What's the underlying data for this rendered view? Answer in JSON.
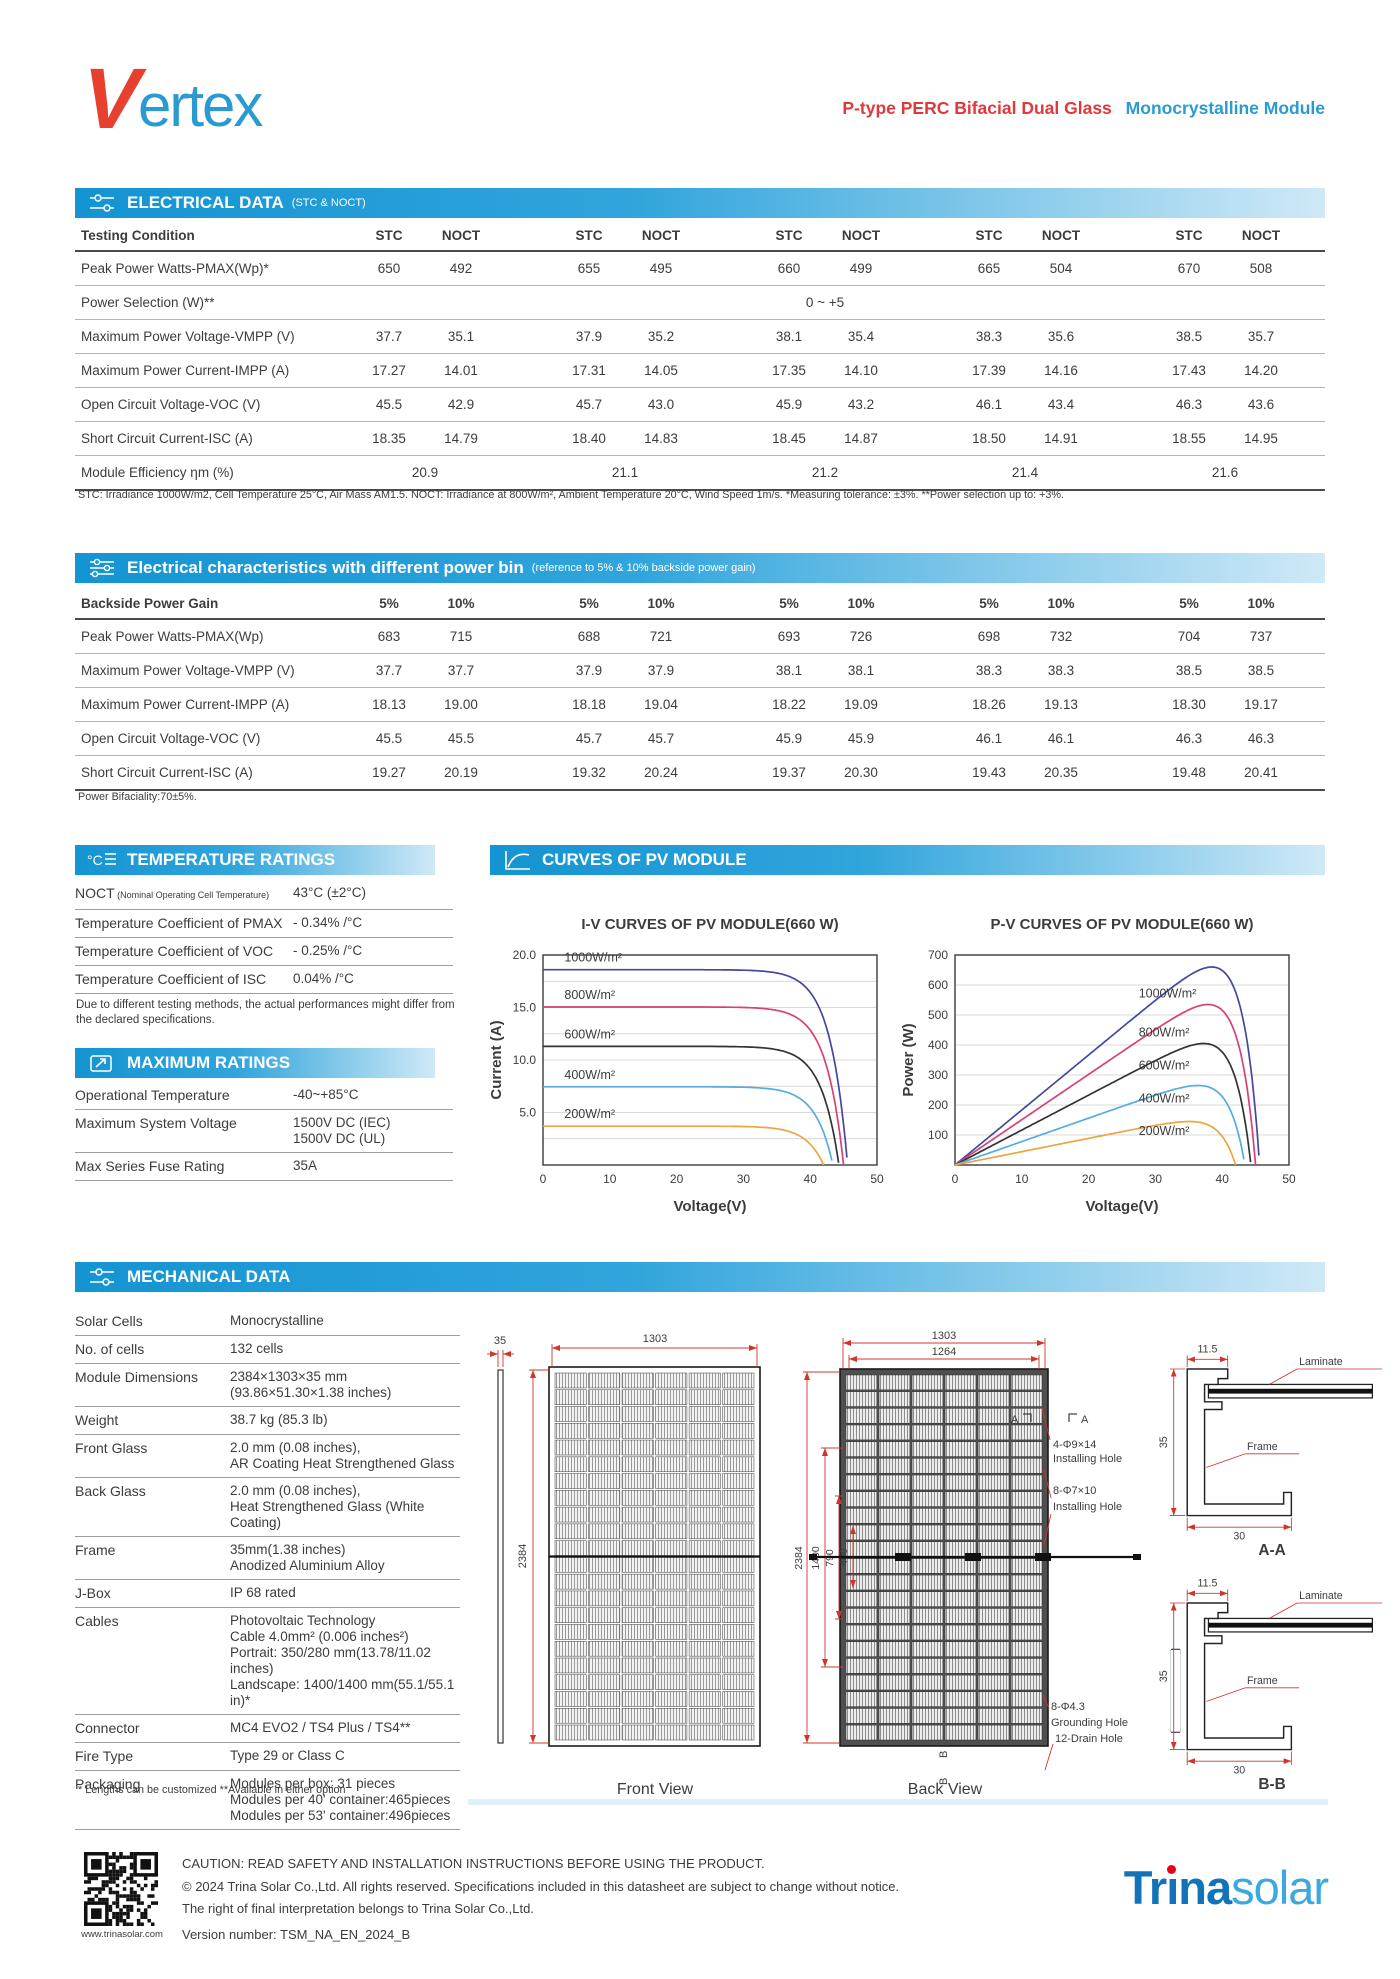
{
  "colors": {
    "accent_blue": "#1b9dd9",
    "brand_red": "#e8402f",
    "header_gradient_start": "#1494d2",
    "header_gradient_end": "#cfe9f7",
    "dimension_red": "#d0342c"
  },
  "header": {
    "logo_v": "V",
    "logo_rest": "ertex",
    "subtitle_red": "P-type PERC Bifacial Dual Glass",
    "subtitle_blue": "Monocrystalline Module"
  },
  "electrical": {
    "title": "ELECTRICAL DATA",
    "title_note": "(STC & NOCT)",
    "header_label": "Testing Condition",
    "pair_labels": [
      "STC",
      "NOCT"
    ],
    "rows": [
      {
        "label": "Peak Power Watts-PMAX(Wp)*",
        "pairs": [
          [
            "650",
            "492"
          ],
          [
            "655",
            "495"
          ],
          [
            "660",
            "499"
          ],
          [
            "665",
            "504"
          ],
          [
            "670",
            "508"
          ]
        ]
      },
      {
        "label": "Power Selection (W)**",
        "span": "0 ~ +5"
      },
      {
        "label": "Maximum Power Voltage-VMPP (V)",
        "pairs": [
          [
            "37.7",
            "35.1"
          ],
          [
            "37.9",
            "35.2"
          ],
          [
            "38.1",
            "35.4"
          ],
          [
            "38.3",
            "35.6"
          ],
          [
            "38.5",
            "35.7"
          ]
        ]
      },
      {
        "label": "Maximum Power Current-IMPP (A)",
        "pairs": [
          [
            "17.27",
            "14.01"
          ],
          [
            "17.31",
            "14.05"
          ],
          [
            "17.35",
            "14.10"
          ],
          [
            "17.39",
            "14.16"
          ],
          [
            "17.43",
            "14.20"
          ]
        ]
      },
      {
        "label": "Open Circuit Voltage-VOC (V)",
        "pairs": [
          [
            "45.5",
            "42.9"
          ],
          [
            "45.7",
            "43.0"
          ],
          [
            "45.9",
            "43.2"
          ],
          [
            "46.1",
            "43.4"
          ],
          [
            "46.3",
            "43.6"
          ]
        ]
      },
      {
        "label": "Short Circuit Current-ISC (A)",
        "pairs": [
          [
            "18.35",
            "14.79"
          ],
          [
            "18.40",
            "14.83"
          ],
          [
            "18.45",
            "14.87"
          ],
          [
            "18.50",
            "14.91"
          ],
          [
            "18.55",
            "14.95"
          ]
        ]
      },
      {
        "label": "Module Efficiency ηm (%)",
        "centers": [
          "20.9",
          "21.1",
          "21.2",
          "21.4",
          "21.6"
        ]
      }
    ],
    "footnote": "STC: Irradiance 1000W/m2, Cell Temperature 25°C, Air Mass AM1.5.    NOCT: Irradiance at 800W/m², Ambient Temperature 20°C, Wind Speed 1m/s.    *Measuring tolerance: ±3%.    **Power selection up to: +3%."
  },
  "power_bin": {
    "title": "Electrical characteristics with different power bin",
    "title_note": "(reference to 5% & 10%  backside power gain)",
    "header_label": "Backside Power Gain",
    "pair_labels": [
      "5%",
      "10%"
    ],
    "rows": [
      {
        "label": "Peak Power Watts-PMAX(Wp)",
        "pairs": [
          [
            "683",
            "715"
          ],
          [
            "688",
            "721"
          ],
          [
            "693",
            "726"
          ],
          [
            "698",
            "732"
          ],
          [
            "704",
            "737"
          ]
        ]
      },
      {
        "label": "Maximum Power Voltage-VMPP (V)",
        "pairs": [
          [
            "37.7",
            "37.7"
          ],
          [
            "37.9",
            "37.9"
          ],
          [
            "38.1",
            "38.1"
          ],
          [
            "38.3",
            "38.3"
          ],
          [
            "38.5",
            "38.5"
          ]
        ]
      },
      {
        "label": "Maximum Power Current-IMPP (A)",
        "pairs": [
          [
            "18.13",
            "19.00"
          ],
          [
            "18.18",
            "19.04"
          ],
          [
            "18.22",
            "19.09"
          ],
          [
            "18.26",
            "19.13"
          ],
          [
            "18.30",
            "19.17"
          ]
        ]
      },
      {
        "label": "Open Circuit Voltage-VOC (V)",
        "pairs": [
          [
            "45.5",
            "45.5"
          ],
          [
            "45.7",
            "45.7"
          ],
          [
            "45.9",
            "45.9"
          ],
          [
            "46.1",
            "46.1"
          ],
          [
            "46.3",
            "46.3"
          ]
        ]
      },
      {
        "label": "Short Circuit Current-ISC (A)",
        "pairs": [
          [
            "19.27",
            "20.19"
          ],
          [
            "19.32",
            "20.24"
          ],
          [
            "19.37",
            "20.30"
          ],
          [
            "19.43",
            "20.35"
          ],
          [
            "19.48",
            "20.41"
          ]
        ]
      }
    ],
    "footnote": "Power Bifaciality:70±5%."
  },
  "temperature": {
    "title": "TEMPERATURE RATINGS",
    "rows": [
      {
        "label": "NOCT",
        "label_small": "(Nominal Operating Cell Temperature)",
        "lines": [
          "43°C (±2°C)"
        ]
      },
      {
        "label": "Temperature Coefficient of PMAX",
        "lines": [
          "- 0.34% /°C"
        ]
      },
      {
        "label": "Temperature Coefficient of VOC",
        "lines": [
          "- 0.25% /°C"
        ]
      },
      {
        "label": "Temperature Coefficient of ISC",
        "lines": [
          "0.04% /°C"
        ]
      }
    ],
    "note": "Due to different testing methods, the actual performances might differ from the declared specifications."
  },
  "maximum": {
    "title": "MAXIMUM RATINGS",
    "rows": [
      {
        "label": "Operational Temperature",
        "lines": [
          "-40~+85°C"
        ]
      },
      {
        "label": "Maximum System Voltage",
        "lines": [
          "1500V DC (IEC)",
          "1500V DC (UL)"
        ]
      },
      {
        "label": "Max Series Fuse Rating",
        "lines": [
          "35A"
        ]
      }
    ]
  },
  "curves_section": {
    "title": "CURVES OF PV MODULE"
  },
  "chart_data": [
    {
      "type": "line",
      "title": "I-V CURVES OF PV MODULE(660 W)",
      "xlabel": "Voltage(V)",
      "ylabel": "Current (A)",
      "xlim": [
        0,
        50
      ],
      "ylim": [
        0,
        20
      ],
      "xticks": [
        0,
        10,
        20,
        30,
        40,
        50
      ],
      "yticks": [
        5,
        10,
        15,
        20
      ],
      "ytick_labels": [
        "5.0",
        "10.0",
        "15.0",
        "20.0"
      ],
      "grid": "horizontal, step 2.5",
      "legend_position": "inline-labels",
      "series": [
        {
          "name": "1000W/m²",
          "color": "#43489e",
          "isc": 18.6,
          "voc": 45.6
        },
        {
          "name": "800W/m²",
          "color": "#d84077",
          "isc": 15.05,
          "voc": 45.0
        },
        {
          "name": "600W/m²",
          "color": "#333333",
          "isc": 11.3,
          "voc": 44.3
        },
        {
          "name": "400W/m²",
          "color": "#56ace0",
          "isc": 7.45,
          "voc": 43.4
        },
        {
          "name": "200W/m²",
          "color": "#eda63e",
          "isc": 3.7,
          "voc": 42.0
        }
      ]
    },
    {
      "type": "line",
      "title": "P-V CURVES OF PV MODULE(660 W)",
      "xlabel": "Voltage(V)",
      "ylabel": "Power (W)",
      "xlim": [
        0,
        50
      ],
      "ylim": [
        0,
        700
      ],
      "xticks": [
        0,
        10,
        20,
        30,
        40,
        50
      ],
      "yticks": [
        100,
        200,
        300,
        400,
        500,
        600,
        700
      ],
      "ytick_labels": [
        "100",
        "200",
        "300",
        "400",
        "500",
        "600",
        "700"
      ],
      "grid": "horizontal, step 100",
      "legend_position": "inline-labels",
      "series": [
        {
          "name": "1000W/m²",
          "color": "#43489e",
          "pmax": 660,
          "vmp": 37,
          "isc": 18.6,
          "voc": 45.6,
          "label_x": 27.5,
          "label_y": 558
        },
        {
          "name": "800W/m²",
          "color": "#d84077",
          "pmax": 535,
          "vmp": 36.8,
          "isc": 15.05,
          "voc": 45.0,
          "label_x": 27.5,
          "label_y": 428
        },
        {
          "name": "600W/m²",
          "color": "#333333",
          "pmax": 405,
          "vmp": 36.5,
          "isc": 11.3,
          "voc": 44.3,
          "label_x": 27.5,
          "label_y": 318
        },
        {
          "name": "400W/m²",
          "color": "#56ace0",
          "pmax": 265,
          "vmp": 36,
          "isc": 7.45,
          "voc": 43.4,
          "label_x": 27.5,
          "label_y": 208
        },
        {
          "name": "200W/m²",
          "color": "#eda63e",
          "pmax": 145,
          "vmp": 35.5,
          "isc": 3.7,
          "voc": 42.0,
          "label_x": 27.5,
          "label_y": 100
        }
      ]
    }
  ],
  "mechanical": {
    "title": "MECHANICAL DATA",
    "rows": [
      {
        "label": "Solar Cells",
        "lines": [
          "Monocrystalline"
        ]
      },
      {
        "label": "No. of cells",
        "lines": [
          "132 cells"
        ]
      },
      {
        "label": "Module Dimensions",
        "lines": [
          "2384×1303×35 mm",
          "(93.86×51.30×1.38 inches)"
        ]
      },
      {
        "label": "Weight",
        "lines": [
          "38.7 kg (85.3 lb)"
        ]
      },
      {
        "label": "Front Glass",
        "lines": [
          "2.0 mm (0.08 inches),",
          "AR Coating Heat Strengthened Glass"
        ]
      },
      {
        "label": "Back Glass",
        "lines": [
          "2.0 mm (0.08 inches),",
          "Heat Strengthened Glass (White Coating)"
        ]
      },
      {
        "label": "Frame",
        "lines": [
          "35mm(1.38 inches)",
          "Anodized Aluminium Alloy"
        ]
      },
      {
        "label": "J-Box",
        "lines": [
          "IP 68 rated"
        ]
      },
      {
        "label": "Cables",
        "lines": [
          "Photovoltaic Technology",
          "Cable 4.0mm² (0.006 inches²)",
          "Portrait: 350/280 mm(13.78/11.02 inches)",
          "Landscape: 1400/1400 mm(55.1/55.1 in)*"
        ]
      },
      {
        "label": "Connector",
        "lines": [
          "MC4 EVO2 / TS4 Plus / TS4**"
        ]
      },
      {
        "label": "Fire Type",
        "lines": [
          "Type 29 or Class C"
        ]
      },
      {
        "label": "Packaging",
        "lines": [
          "Modules per box: 31 pieces",
          "Modules per 40' container:465pieces",
          "Modules per 53' container:496pieces"
        ]
      }
    ],
    "footnote": "* Lengths can be customized    **Available in either option"
  },
  "drawings": {
    "front": {
      "caption": "Front View",
      "dim_side": "35",
      "dim_width": "1303",
      "dim_height": "2384"
    },
    "back": {
      "caption": "Back View",
      "dim_width": "1303",
      "dim_inner_width": "1264",
      "dim_height": "2384",
      "dim_mid": "1400",
      "dim_holes": "790",
      "dim_holes_inner": "400",
      "mark_a": "A",
      "mark_b": "B",
      "callout1a": "4-Φ9×14",
      "callout1b": "Installing Hole",
      "callout2a": "8-Φ7×10",
      "callout2b": "Installing Hole",
      "callout3a": "8-Φ4.3",
      "callout3b": "Grounding Hole",
      "callout4": "12-Drain Hole"
    },
    "section_aa": {
      "title": "A-A",
      "dim_top": "11.5",
      "dim_left": "35",
      "dim_bottom": "30",
      "laminate": "Laminate",
      "frame": "Frame"
    },
    "section_bb": {
      "title": "B-B",
      "dim_top": "11.5",
      "dim_left": "35",
      "dim_bottom": "30",
      "laminate": "Laminate",
      "frame": "Frame"
    }
  },
  "footer": {
    "website": "www.trinasolar.com",
    "caution": "CAUTION: READ SAFETY AND INSTALLATION INSTRUCTIONS BEFORE USING THE PRODUCT.",
    "copyright": "© 2024 Trina Solar Co.,Ltd. All rights reserved. Specifications included in this datasheet are subject to change without notice.",
    "interpretation": "The right of final interpretation belongs to Trina Solar Co.,Ltd.",
    "version": "Version number: TSM_NA_EN_2024_B",
    "logo_part1": "Tr",
    "logo_i": "ı",
    "logo_part2": "na",
    "logo_part3": "solar"
  }
}
